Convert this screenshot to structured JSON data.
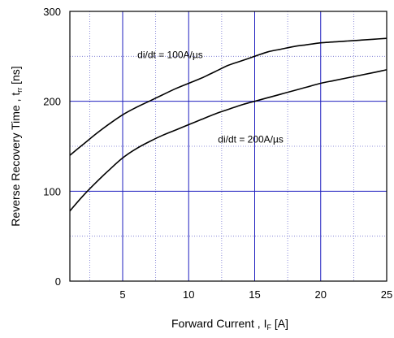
{
  "chart_data": {
    "type": "line",
    "title": "",
    "xlabel": {
      "main": "Forward Current , I",
      "sub": "F",
      "unit": " [A]"
    },
    "ylabel": {
      "main": "Reverse Recovery Time , t",
      "sub": "rr",
      "unit": " [ns]"
    },
    "xlim": [
      1,
      25
    ],
    "ylim": [
      0,
      300
    ],
    "xticks": [
      5,
      10,
      15,
      20,
      25
    ],
    "yticks": [
      0,
      100,
      200,
      300
    ],
    "major_grid_x": [
      5,
      10,
      15,
      20
    ],
    "major_grid_y": [
      100,
      200
    ],
    "minor_grid_x": [
      2.5,
      7.5,
      12.5,
      17.5,
      22.5
    ],
    "minor_grid_y": [
      50,
      150,
      250
    ],
    "grid_color": "#1f1fbf",
    "minor_grid_color": "#6f6fcf",
    "series": [
      {
        "name": "di/dt = 100A/µs",
        "x": [
          1,
          2,
          3,
          4,
          5,
          6,
          7,
          8,
          9,
          10,
          11,
          12,
          13,
          14,
          15,
          16,
          17,
          18,
          19,
          20,
          21,
          22,
          23,
          24,
          25
        ],
        "values": [
          140,
          152,
          164,
          175,
          185,
          193,
          200,
          207,
          214,
          220,
          226,
          233,
          240,
          245,
          250,
          255,
          258,
          261,
          263,
          265,
          266,
          267,
          268,
          269,
          270
        ]
      },
      {
        "name": "di/dt = 200A/µs",
        "x": [
          1,
          2,
          3,
          4,
          5,
          6,
          7,
          8,
          9,
          10,
          11,
          12,
          13,
          14,
          15,
          16,
          17,
          18,
          19,
          20,
          21,
          22,
          23,
          24,
          25
        ],
        "values": [
          78,
          95,
          110,
          124,
          137,
          147,
          155,
          162,
          168,
          174,
          180,
          186,
          191,
          196,
          200,
          204,
          208,
          212,
          216,
          220,
          223,
          226,
          229,
          232,
          235
        ]
      }
    ],
    "annotations": [
      {
        "text": "di/dt = 100A/µs",
        "x": 8.6,
        "y": 248
      },
      {
        "text": "di/dt = 200A/µs",
        "x": 14.7,
        "y": 154
      }
    ]
  }
}
